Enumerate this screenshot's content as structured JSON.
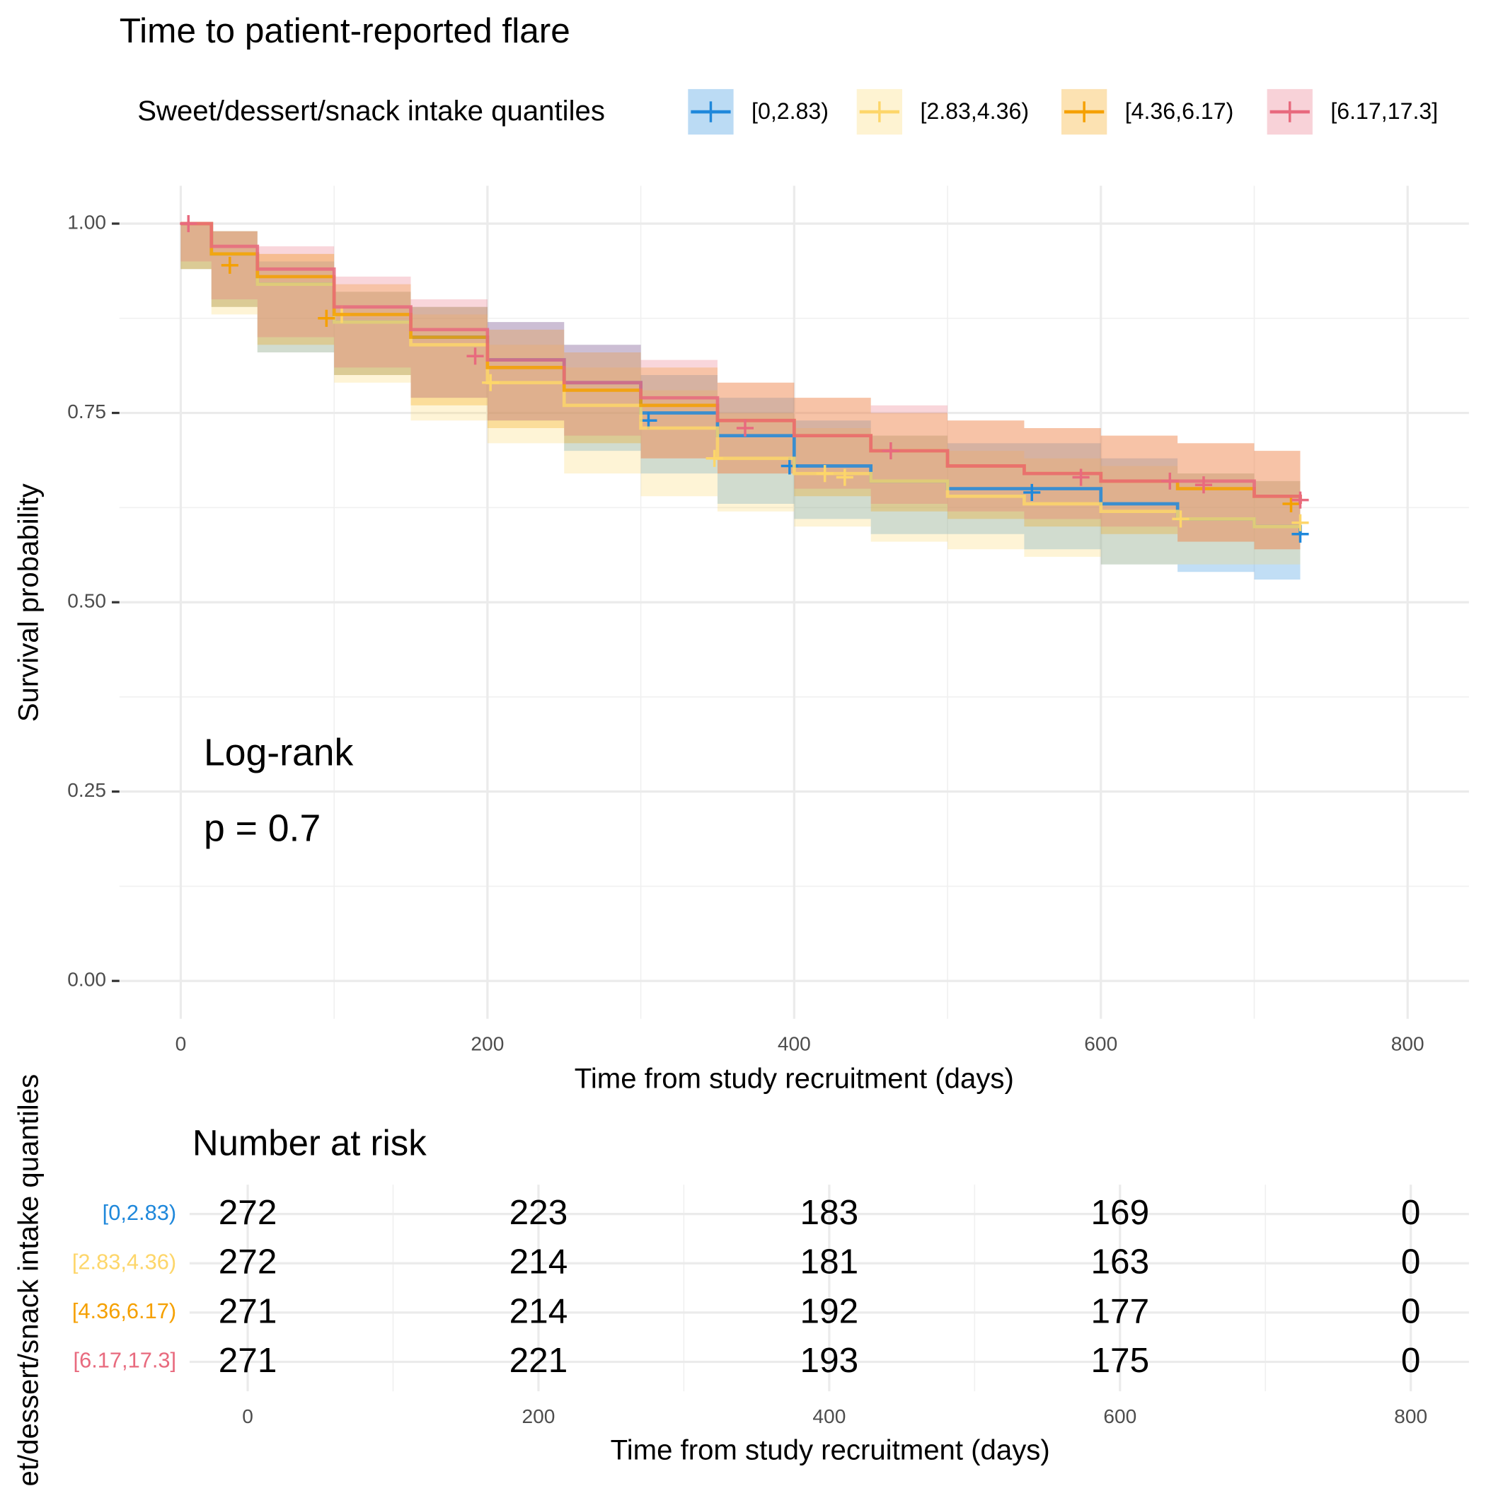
{
  "chart_data": [
    {
      "type": "survival",
      "title": "Time to patient-reported flare",
      "x_label": "Time from study recruitment (days)",
      "y_label": "Survival probability",
      "legend_title": "Sweet/dessert/snack intake quantiles",
      "legend_position": "top",
      "annotations": [
        "Log-rank",
        "p = 0.7"
      ],
      "grid": true,
      "xlim": [
        -40,
        840
      ],
      "ylim": [
        -0.05,
        1.05
      ],
      "xticks": [
        0,
        200,
        400,
        600,
        800
      ],
      "yticks": [
        {
          "value": 0,
          "label": "0.00"
        },
        {
          "value": 0.25,
          "label": "0.25"
        },
        {
          "value": 0.5,
          "label": "0.50"
        },
        {
          "value": 0.75,
          "label": "0.75"
        },
        {
          "value": 1,
          "label": "1.00"
        }
      ],
      "x": [
        0,
        20,
        50,
        100,
        150,
        200,
        250,
        300,
        350,
        400,
        450,
        500,
        550,
        600,
        650,
        700,
        730
      ],
      "series": [
        {
          "name": "[0,2.83)",
          "color": "#1f88db",
          "values": [
            1,
            0.96,
            0.92,
            0.87,
            0.85,
            0.82,
            0.79,
            0.75,
            0.72,
            0.68,
            0.66,
            0.65,
            0.65,
            0.63,
            0.61,
            0.6,
            0.59
          ],
          "lower": [
            1,
            0.94,
            0.89,
            0.83,
            0.8,
            0.77,
            0.74,
            0.7,
            0.67,
            0.63,
            0.61,
            0.59,
            0.59,
            0.57,
            0.55,
            0.54,
            0.53
          ],
          "upper": [
            1,
            0.99,
            0.95,
            0.91,
            0.89,
            0.87,
            0.84,
            0.8,
            0.77,
            0.74,
            0.72,
            0.71,
            0.71,
            0.69,
            0.67,
            0.66,
            0.65
          ],
          "censor_x": [
            305,
            397,
            555,
            730
          ],
          "censor_y": [
            0.74,
            0.68,
            0.645,
            0.59
          ]
        },
        {
          "name": "[2.83,4.36)",
          "color": "#fdd66a",
          "values": [
            1,
            0.96,
            0.92,
            0.87,
            0.84,
            0.79,
            0.76,
            0.73,
            0.69,
            0.67,
            0.66,
            0.64,
            0.63,
            0.62,
            0.61,
            0.6,
            0.6
          ],
          "lower": [
            1,
            0.94,
            0.88,
            0.83,
            0.79,
            0.74,
            0.71,
            0.67,
            0.64,
            0.62,
            0.6,
            0.58,
            0.57,
            0.56,
            0.55,
            0.55,
            0.55
          ],
          "upper": [
            1,
            0.99,
            0.96,
            0.91,
            0.88,
            0.84,
            0.81,
            0.78,
            0.75,
            0.73,
            0.72,
            0.7,
            0.69,
            0.68,
            0.67,
            0.66,
            0.66
          ],
          "censor_x": [
            105,
            202,
            348,
            420,
            433,
            652,
            730
          ],
          "censor_y": [
            0.88,
            0.79,
            0.69,
            0.67,
            0.665,
            0.61,
            0.605
          ]
        },
        {
          "name": "[4.36,6.17)",
          "color": "#f5a000",
          "values": [
            1,
            0.96,
            0.93,
            0.88,
            0.85,
            0.81,
            0.78,
            0.76,
            0.74,
            0.72,
            0.7,
            0.68,
            0.67,
            0.66,
            0.65,
            0.64,
            0.63
          ],
          "lower": [
            1,
            0.94,
            0.89,
            0.84,
            0.8,
            0.76,
            0.73,
            0.71,
            0.69,
            0.67,
            0.64,
            0.62,
            0.61,
            0.6,
            0.59,
            0.58,
            0.57
          ],
          "upper": [
            1,
            0.99,
            0.96,
            0.92,
            0.89,
            0.86,
            0.83,
            0.81,
            0.79,
            0.77,
            0.75,
            0.74,
            0.73,
            0.72,
            0.71,
            0.7,
            0.69
          ],
          "censor_x": [
            32,
            95,
            724
          ],
          "censor_y": [
            0.945,
            0.875,
            0.63
          ]
        },
        {
          "name": "[6.17,17.3]",
          "color": "#e86a7e",
          "values": [
            1,
            0.97,
            0.94,
            0.89,
            0.86,
            0.82,
            0.79,
            0.77,
            0.74,
            0.72,
            0.7,
            0.68,
            0.67,
            0.66,
            0.66,
            0.64,
            0.63
          ],
          "lower": [
            1,
            0.95,
            0.9,
            0.85,
            0.81,
            0.77,
            0.74,
            0.72,
            0.69,
            0.67,
            0.65,
            0.63,
            0.62,
            0.61,
            0.6,
            0.58,
            0.57
          ],
          "upper": [
            1,
            0.99,
            0.97,
            0.93,
            0.9,
            0.87,
            0.84,
            0.82,
            0.79,
            0.77,
            0.76,
            0.74,
            0.73,
            0.72,
            0.71,
            0.7,
            0.69
          ],
          "censor_x": [
            5,
            192,
            368,
            463,
            587,
            645,
            667,
            730
          ],
          "censor_y": [
            1,
            0.825,
            0.73,
            0.7,
            0.665,
            0.66,
            0.655,
            0.635
          ]
        }
      ]
    },
    {
      "type": "risk_table",
      "title": "Number at risk",
      "x_label": "Time from study recruitment (days)",
      "y_label": "Sweet/dessert/snack intake quantiles",
      "xlim": [
        -40,
        840
      ],
      "xticks": [
        0,
        200,
        400,
        600,
        800
      ],
      "x": [
        0,
        200,
        400,
        600,
        800
      ],
      "series": [
        {
          "name": "[0,2.83)",
          "color": "#1f88db",
          "values": [
            272,
            223,
            183,
            169,
            0
          ]
        },
        {
          "name": "[2.83,4.36)",
          "color": "#fdd66a",
          "values": [
            272,
            214,
            181,
            163,
            0
          ]
        },
        {
          "name": "[4.36,6.17)",
          "color": "#f5a000",
          "values": [
            271,
            214,
            192,
            177,
            0
          ]
        },
        {
          "name": "[6.17,17.3]",
          "color": "#e86a7e",
          "values": [
            271,
            221,
            193,
            175,
            0
          ]
        }
      ]
    }
  ]
}
